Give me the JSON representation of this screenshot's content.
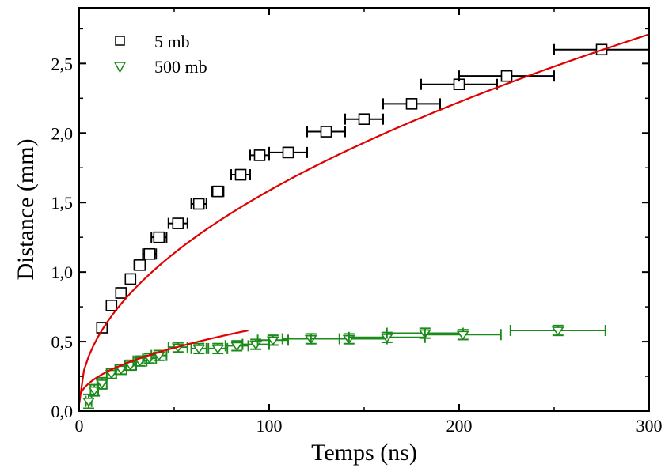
{
  "chart_data": {
    "type": "scatter",
    "title": "",
    "xlabel": "Temps (ns)",
    "ylabel": "Distance (mm)",
    "xlim": [
      0,
      300
    ],
    "ylim": [
      0,
      2.9
    ],
    "x_ticks": [
      0,
      100,
      200,
      300
    ],
    "x_tick_labels": [
      "0",
      "100",
      "200",
      "300"
    ],
    "y_ticks": [
      0,
      0.5,
      1.0,
      1.5,
      2.0,
      2.5
    ],
    "y_tick_labels": [
      "0,0",
      "0,5",
      "1,0",
      "1,5",
      "2,0",
      "2,5"
    ],
    "grid": false,
    "legend_position": "top-left",
    "series": [
      {
        "name": "5 mb",
        "marker": "square",
        "color": "#000000",
        "points": [
          {
            "x": 12,
            "y": 0.6,
            "xerr": 1,
            "yerr": 0.035
          },
          {
            "x": 17,
            "y": 0.76,
            "xerr": 1.5,
            "yerr": 0.035
          },
          {
            "x": 22,
            "y": 0.85,
            "xerr": 2,
            "yerr": 0.035
          },
          {
            "x": 27,
            "y": 0.95,
            "xerr": 2.5,
            "yerr": 0.035
          },
          {
            "x": 32,
            "y": 1.05,
            "xerr": 3,
            "yerr": 0.035
          },
          {
            "x": 37,
            "y": 1.13,
            "xerr": 3.5,
            "yerr": 0.035
          },
          {
            "x": 42,
            "y": 1.25,
            "xerr": 4,
            "yerr": 0.035
          },
          {
            "x": 52,
            "y": 1.35,
            "xerr": 5,
            "yerr": 0.035
          },
          {
            "x": 63,
            "y": 1.49,
            "xerr": 4,
            "yerr": 0.035
          },
          {
            "x": 73,
            "y": 1.58,
            "xerr": 3,
            "yerr": 0.035
          },
          {
            "x": 85,
            "y": 1.7,
            "xerr": 5,
            "yerr": 0.035
          },
          {
            "x": 95,
            "y": 1.84,
            "xerr": 5,
            "yerr": 0.035
          },
          {
            "x": 110,
            "y": 1.86,
            "xerr": 10,
            "yerr": 0.035
          },
          {
            "x": 130,
            "y": 2.01,
            "xerr": 10,
            "yerr": 0.035
          },
          {
            "x": 150,
            "y": 2.1,
            "xerr": 10,
            "yerr": 0.035
          },
          {
            "x": 175,
            "y": 2.21,
            "xerr": 15,
            "yerr": 0.035
          },
          {
            "x": 200,
            "y": 2.35,
            "xerr": 20,
            "yerr": 0.035
          },
          {
            "x": 225,
            "y": 2.41,
            "xerr": 25,
            "yerr": 0.035
          },
          {
            "x": 275,
            "y": 2.6,
            "xerr": 25,
            "yerr": 0.035
          }
        ]
      },
      {
        "name": "500 mb",
        "marker": "triangle-down",
        "color": "#1a8a1a",
        "points": [
          {
            "x": 5,
            "y": 0.07,
            "xerr": 1.5,
            "yerr": 0.05
          },
          {
            "x": 8,
            "y": 0.15,
            "xerr": 2,
            "yerr": 0.04
          },
          {
            "x": 12,
            "y": 0.2,
            "xerr": 2.5,
            "yerr": 0.04
          },
          {
            "x": 17,
            "y": 0.27,
            "xerr": 2.5,
            "yerr": 0.035
          },
          {
            "x": 22,
            "y": 0.3,
            "xerr": 3,
            "yerr": 0.035
          },
          {
            "x": 27,
            "y": 0.33,
            "xerr": 3,
            "yerr": 0.035
          },
          {
            "x": 32,
            "y": 0.36,
            "xerr": 3.5,
            "yerr": 0.035
          },
          {
            "x": 37,
            "y": 0.38,
            "xerr": 3.5,
            "yerr": 0.035
          },
          {
            "x": 42,
            "y": 0.4,
            "xerr": 4,
            "yerr": 0.035
          },
          {
            "x": 52,
            "y": 0.46,
            "xerr": 5,
            "yerr": 0.035
          },
          {
            "x": 63,
            "y": 0.45,
            "xerr": 4,
            "yerr": 0.035
          },
          {
            "x": 73,
            "y": 0.45,
            "xerr": 5,
            "yerr": 0.035
          },
          {
            "x": 83,
            "y": 0.47,
            "xerr": 6,
            "yerr": 0.035
          },
          {
            "x": 93,
            "y": 0.48,
            "xerr": 7,
            "yerr": 0.035
          },
          {
            "x": 102,
            "y": 0.51,
            "xerr": 8,
            "yerr": 0.035
          },
          {
            "x": 122,
            "y": 0.52,
            "xerr": 15,
            "yerr": 0.035
          },
          {
            "x": 142,
            "y": 0.52,
            "xerr": 20,
            "yerr": 0.035
          },
          {
            "x": 162,
            "y": 0.53,
            "xerr": 20,
            "yerr": 0.035
          },
          {
            "x": 182,
            "y": 0.56,
            "xerr": 20,
            "yerr": 0.035
          },
          {
            "x": 202,
            "y": 0.55,
            "xerr": 20,
            "yerr": 0.035
          },
          {
            "x": 252,
            "y": 0.58,
            "xerr": 25,
            "yerr": 0.035
          }
        ]
      }
    ],
    "fits": [
      {
        "color": "#e00000",
        "x_start": 0,
        "x_end": 300,
        "y_start": 0.05,
        "y_end": 2.71
      },
      {
        "color": "#e00000",
        "x_start": 0,
        "x_end": 89,
        "y_start": 0.08,
        "y_end": 0.58
      }
    ]
  }
}
